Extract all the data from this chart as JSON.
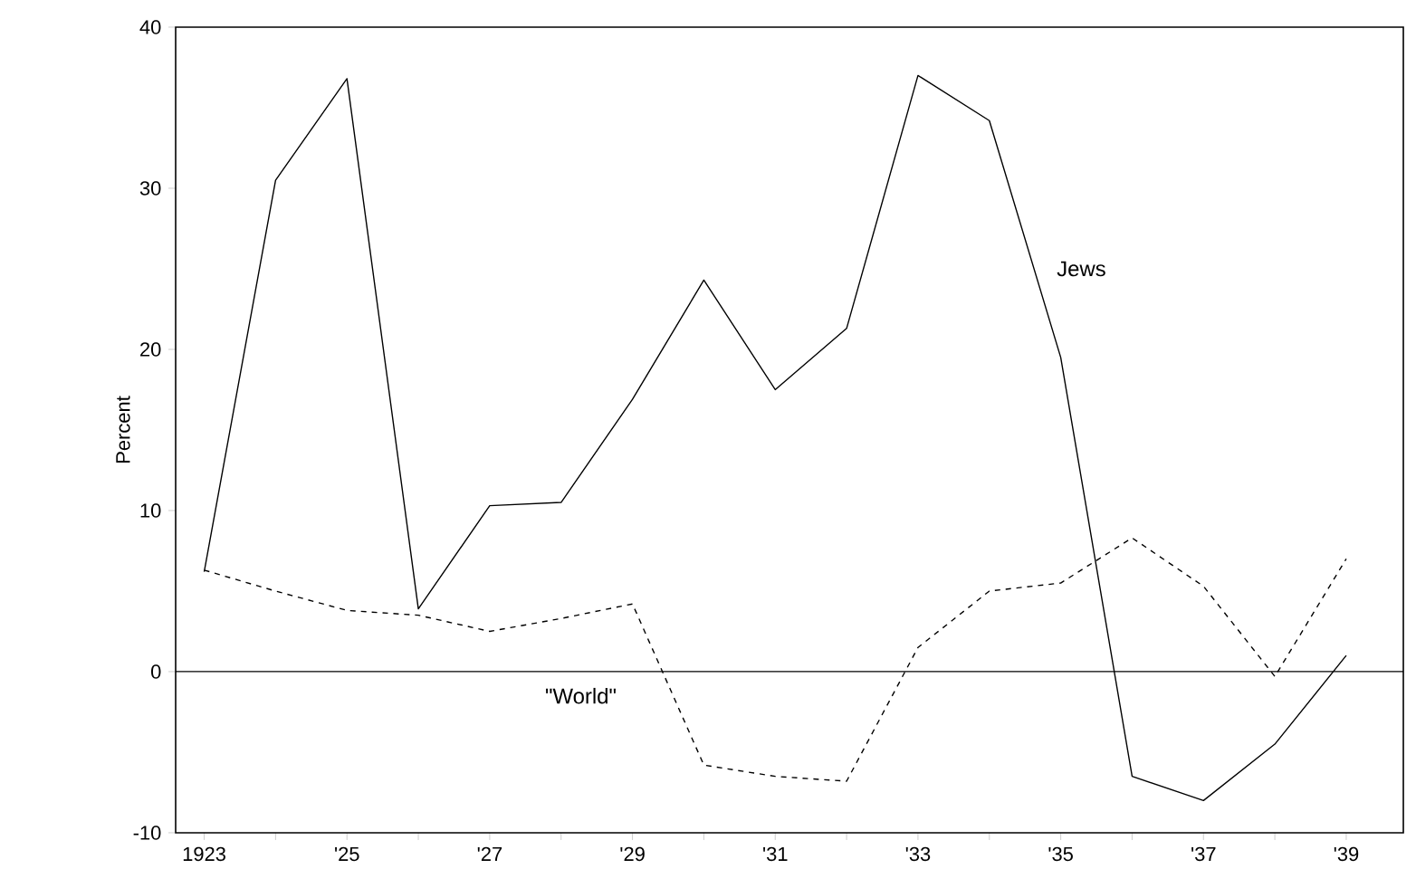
{
  "chart_data": {
    "type": "line",
    "ylabel": "Percent",
    "x": [
      1923,
      1924,
      1925,
      1926,
      1927,
      1928,
      1929,
      1930,
      1931,
      1932,
      1933,
      1934,
      1935,
      1936,
      1937,
      1938,
      1939
    ],
    "series": [
      {
        "name": "Jews",
        "color": "#000000",
        "line_style": "solid",
        "values": [
          6.2,
          30.5,
          36.8,
          3.9,
          10.3,
          10.5,
          16.9,
          24.3,
          17.5,
          21.3,
          37,
          34.2,
          19.5,
          -6.5,
          -8,
          -4.5,
          1
        ]
      },
      {
        "name": "\"World\"",
        "color": "#000000",
        "line_style": "dashed",
        "values": [
          6.3,
          5,
          3.8,
          3.5,
          2.5,
          3.3,
          4.2,
          -5.8,
          -6.5,
          -6.8,
          1.5,
          5,
          5.5,
          8.3,
          5.3,
          -0.3,
          7
        ]
      }
    ],
    "xlim": [
      1922.6,
      1939.8
    ],
    "ylim": [
      -10,
      40
    ],
    "xticks": [
      1923,
      {
        "value": 1924,
        "label": null
      },
      {
        "value": 1925,
        "label": "'25"
      },
      {
        "value": 1926,
        "label": null
      },
      {
        "value": 1927,
        "label": "'27"
      },
      {
        "value": 1928,
        "label": null
      },
      {
        "value": 1929,
        "label": "'29"
      },
      {
        "value": 1930,
        "label": null
      },
      {
        "value": 1931,
        "label": "'31"
      },
      {
        "value": 1932,
        "label": null
      },
      {
        "value": 1933,
        "label": "'33"
      },
      {
        "value": 1934,
        "label": null
      },
      {
        "value": 1935,
        "label": "'35"
      },
      {
        "value": 1936,
        "label": null
      },
      {
        "value": 1937,
        "label": "'37"
      },
      {
        "value": 1938,
        "label": null
      },
      {
        "value": 1939,
        "label": "'39"
      }
    ],
    "yticks": [
      -10,
      0,
      10,
      20,
      30,
      40
    ],
    "ref_lines": [
      {
        "axis": "y",
        "value": 0,
        "color": "#000000"
      }
    ],
    "grid": false,
    "marker": "none"
  }
}
